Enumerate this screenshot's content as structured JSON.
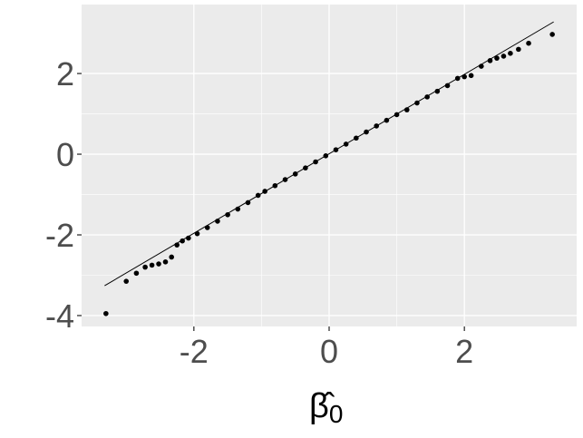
{
  "chart_data": {
    "type": "scatter",
    "x_label": {
      "symbol": "β̂",
      "subscript": "0"
    },
    "xlim": [
      -3.66,
      3.66
    ],
    "ylim": [
      -4.27,
      3.71
    ],
    "xticks": [
      -2,
      0,
      2
    ],
    "yticks": [
      -4,
      -2,
      0,
      2
    ],
    "grid": true,
    "color": "#000000",
    "reference_line": {
      "x": [
        -3.32,
        3.32
      ],
      "y": [
        -3.26,
        3.28
      ],
      "color": "#000000"
    },
    "x": [
      -3.3,
      -3.0,
      -2.85,
      -2.72,
      -2.62,
      -2.52,
      -2.42,
      -2.33,
      -2.25,
      -2.17,
      -2.08,
      -1.95,
      -1.8,
      -1.65,
      -1.5,
      -1.35,
      -1.2,
      -1.05,
      -0.95,
      -0.8,
      -0.65,
      -0.5,
      -0.35,
      -0.2,
      -0.05,
      0.1,
      0.25,
      0.4,
      0.55,
      0.7,
      0.85,
      1.0,
      1.15,
      1.3,
      1.45,
      1.6,
      1.75,
      1.9,
      2.0,
      2.1,
      2.25,
      2.38,
      2.48,
      2.58,
      2.68,
      2.8,
      2.95,
      3.3
    ],
    "y": [
      -3.95,
      -3.15,
      -2.95,
      -2.8,
      -2.75,
      -2.72,
      -2.67,
      -2.55,
      -2.25,
      -2.15,
      -2.08,
      -1.97,
      -1.82,
      -1.66,
      -1.5,
      -1.36,
      -1.2,
      -1.02,
      -0.92,
      -0.78,
      -0.63,
      -0.49,
      -0.34,
      -0.19,
      -0.04,
      0.11,
      0.25,
      0.4,
      0.55,
      0.7,
      0.84,
      0.98,
      1.1,
      1.27,
      1.42,
      1.56,
      1.7,
      1.88,
      1.92,
      1.95,
      2.18,
      2.32,
      2.38,
      2.43,
      2.5,
      2.6,
      2.75,
      2.97
    ]
  }
}
